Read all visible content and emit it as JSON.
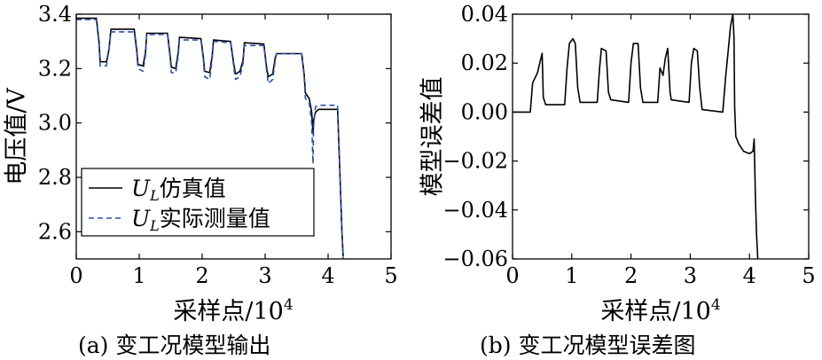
{
  "chart_data": [
    {
      "id": "a",
      "type": "line",
      "caption": "(a) 变工况模型输出",
      "xlabel": "采样点/10",
      "xlabel_sup": "4",
      "ylabel": "电压值/V",
      "xlim": [
        0,
        5
      ],
      "ylim": [
        2.5,
        3.4
      ],
      "xticks": [
        0,
        1,
        2,
        3,
        4,
        5
      ],
      "yticks": [
        2.6,
        2.8,
        3.0,
        3.2,
        3.4
      ],
      "xtick_labels": [
        "0",
        "1",
        "2",
        "3",
        "4",
        "5"
      ],
      "ytick_labels": [
        "2.6",
        "2.8",
        "3.0",
        "3.2",
        "3.4"
      ],
      "legend_position": "lower-left",
      "series": [
        {
          "name": "仿真值",
          "legend_main": "U",
          "legend_sub": "L",
          "color": "#000000",
          "dash": "solid",
          "points": [
            [
              0,
              3.385
            ],
            [
              0.32,
              3.385
            ],
            [
              0.36,
              3.3
            ],
            [
              0.38,
              3.225
            ],
            [
              0.48,
              3.225
            ],
            [
              0.52,
              3.27
            ],
            [
              0.55,
              3.345
            ],
            [
              0.92,
              3.345
            ],
            [
              0.96,
              3.27
            ],
            [
              0.98,
              3.215
            ],
            [
              1.06,
              3.21
            ],
            [
              1.1,
              3.26
            ],
            [
              1.12,
              3.33
            ],
            [
              1.45,
              3.33
            ],
            [
              1.49,
              3.25
            ],
            [
              1.51,
              3.205
            ],
            [
              1.58,
              3.2
            ],
            [
              1.62,
              3.26
            ],
            [
              1.64,
              3.315
            ],
            [
              1.98,
              3.31
            ],
            [
              2.02,
              3.24
            ],
            [
              2.04,
              3.19
            ],
            [
              2.12,
              3.185
            ],
            [
              2.16,
              3.25
            ],
            [
              2.18,
              3.305
            ],
            [
              2.45,
              3.3
            ],
            [
              2.5,
              3.22
            ],
            [
              2.53,
              3.18
            ],
            [
              2.6,
              3.19
            ],
            [
              2.65,
              3.23
            ],
            [
              2.67,
              3.295
            ],
            [
              2.98,
              3.29
            ],
            [
              3.02,
              3.21
            ],
            [
              3.05,
              3.17
            ],
            [
              3.12,
              3.18
            ],
            [
              3.16,
              3.24
            ],
            [
              3.18,
              3.255
            ],
            [
              3.58,
              3.255
            ],
            [
              3.62,
              3.18
            ],
            [
              3.64,
              3.11
            ],
            [
              3.7,
              3.09
            ],
            [
              3.74,
              3.04
            ],
            [
              3.76,
              2.96
            ],
            [
              3.77,
              3.01
            ],
            [
              3.8,
              3.04
            ],
            [
              3.85,
              3.05
            ],
            [
              4.15,
              3.05
            ],
            [
              4.19,
              2.8
            ],
            [
              4.22,
              2.6
            ],
            [
              4.24,
              2.51
            ]
          ]
        },
        {
          "name": "实际测量值",
          "legend_main": "U",
          "legend_sub": "L",
          "color": "#2a52a8",
          "dash": "dashed",
          "points": [
            [
              0,
              3.38
            ],
            [
              0.32,
              3.38
            ],
            [
              0.36,
              3.29
            ],
            [
              0.38,
              3.21
            ],
            [
              0.48,
              3.21
            ],
            [
              0.52,
              3.27
            ],
            [
              0.55,
              3.335
            ],
            [
              0.92,
              3.335
            ],
            [
              0.96,
              3.26
            ],
            [
              0.98,
              3.2
            ],
            [
              1.06,
              3.19
            ],
            [
              1.1,
              3.25
            ],
            [
              1.12,
              3.325
            ],
            [
              1.45,
              3.325
            ],
            [
              1.49,
              3.24
            ],
            [
              1.51,
              3.185
            ],
            [
              1.58,
              3.185
            ],
            [
              1.62,
              3.25
            ],
            [
              1.64,
              3.305
            ],
            [
              1.98,
              3.305
            ],
            [
              2.02,
              3.23
            ],
            [
              2.04,
              3.17
            ],
            [
              2.12,
              3.16
            ],
            [
              2.16,
              3.24
            ],
            [
              2.18,
              3.3
            ],
            [
              2.45,
              3.295
            ],
            [
              2.5,
              3.21
            ],
            [
              2.53,
              3.16
            ],
            [
              2.6,
              3.17
            ],
            [
              2.65,
              3.22
            ],
            [
              2.67,
              3.285
            ],
            [
              2.98,
              3.285
            ],
            [
              3.02,
              3.2
            ],
            [
              3.05,
              3.145
            ],
            [
              3.12,
              3.16
            ],
            [
              3.16,
              3.23
            ],
            [
              3.18,
              3.255
            ],
            [
              3.58,
              3.255
            ],
            [
              3.62,
              3.17
            ],
            [
              3.64,
              3.09
            ],
            [
              3.7,
              3.075
            ],
            [
              3.74,
              3.0
            ],
            [
              3.76,
              2.85
            ],
            [
              3.77,
              2.99
            ],
            [
              3.8,
              3.06
            ],
            [
              3.85,
              3.065
            ],
            [
              4.15,
              3.065
            ],
            [
              4.19,
              2.8
            ],
            [
              4.22,
              2.6
            ],
            [
              4.24,
              2.5
            ]
          ]
        }
      ]
    },
    {
      "id": "b",
      "type": "line",
      "caption": "(b) 变工况模型误差图",
      "xlabel": "采样点/10",
      "xlabel_sup": "4",
      "ylabel": "模型误差值",
      "xlim": [
        0,
        5
      ],
      "ylim": [
        -0.06,
        0.04
      ],
      "xticks": [
        0,
        1,
        2,
        3,
        4,
        5
      ],
      "yticks": [
        -0.06,
        -0.04,
        -0.02,
        0.0,
        0.02,
        0.04
      ],
      "xtick_labels": [
        "0",
        "1",
        "2",
        "3",
        "4",
        "5"
      ],
      "ytick_labels": [
        "−0.06",
        "−0.04",
        "−0.02",
        "0.00",
        "0.02",
        "0.04"
      ],
      "series": [
        {
          "name": "模型误差",
          "color": "#000000",
          "dash": "solid",
          "points": [
            [
              0,
              0
            ],
            [
              0.3,
              0
            ],
            [
              0.34,
              0.012
            ],
            [
              0.42,
              0.016
            ],
            [
              0.46,
              0.02
            ],
            [
              0.5,
              0.024
            ],
            [
              0.52,
              0.006
            ],
            [
              0.56,
              0.003
            ],
            [
              0.88,
              0.003
            ],
            [
              0.92,
              0.018
            ],
            [
              0.96,
              0.028
            ],
            [
              1.02,
              0.03
            ],
            [
              1.06,
              0.028
            ],
            [
              1.1,
              0.01
            ],
            [
              1.14,
              0.004
            ],
            [
              1.43,
              0.004
            ],
            [
              1.47,
              0.018
            ],
            [
              1.5,
              0.026
            ],
            [
              1.58,
              0.025
            ],
            [
              1.62,
              0.008
            ],
            [
              1.66,
              0.005
            ],
            [
              1.96,
              0.004
            ],
            [
              2.0,
              0.02
            ],
            [
              2.04,
              0.028
            ],
            [
              2.12,
              0.028
            ],
            [
              2.16,
              0.01
            ],
            [
              2.2,
              0.004
            ],
            [
              2.45,
              0.004
            ],
            [
              2.49,
              0.018
            ],
            [
              2.54,
              0.015
            ],
            [
              2.58,
              0.022
            ],
            [
              2.62,
              0.026
            ],
            [
              2.66,
              0.008
            ],
            [
              2.68,
              0.005
            ],
            [
              2.98,
              0.004
            ],
            [
              3.02,
              0.02
            ],
            [
              3.06,
              0.026
            ],
            [
              3.12,
              0.025
            ],
            [
              3.16,
              0.01
            ],
            [
              3.2,
              0.001
            ],
            [
              3.55,
              0.0
            ],
            [
              3.6,
              0.015
            ],
            [
              3.64,
              0.025
            ],
            [
              3.68,
              0.035
            ],
            [
              3.72,
              0.04
            ],
            [
              3.74,
              0.03
            ],
            [
              3.75,
              0.002
            ],
            [
              3.77,
              -0.01
            ],
            [
              3.82,
              -0.013
            ],
            [
              3.9,
              -0.016
            ],
            [
              4.0,
              -0.017
            ],
            [
              4.06,
              -0.016
            ],
            [
              4.08,
              -0.011
            ],
            [
              4.1,
              -0.035
            ],
            [
              4.12,
              -0.05
            ],
            [
              4.14,
              -0.06
            ]
          ]
        }
      ]
    }
  ]
}
